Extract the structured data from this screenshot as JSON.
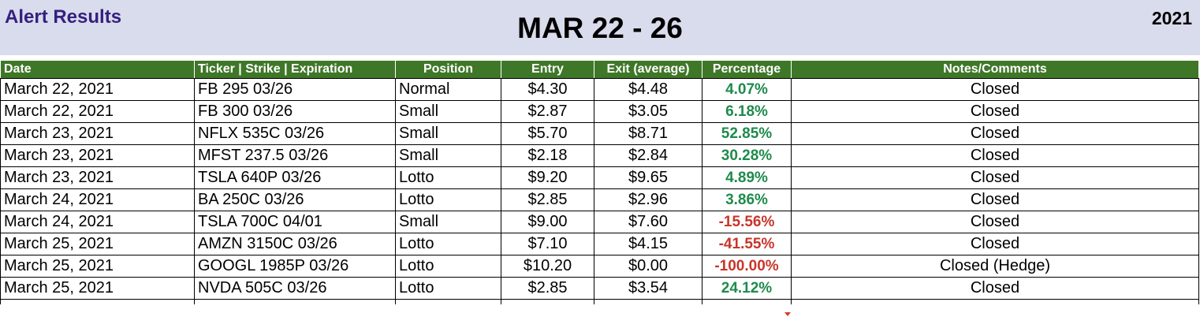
{
  "header": {
    "left_title": "Alert Results",
    "center_title": "MAR 22 - 26",
    "year": "2021"
  },
  "colors": {
    "banner_bg": "#d9dcec",
    "left_title": "#35207f",
    "header_bg": "#3f7728",
    "positive": "#1f8a4c",
    "negative": "#c8352b"
  },
  "table": {
    "columns": [
      "Date",
      "Ticker | Strike | Expiration",
      "Position",
      "Entry",
      "Exit (average)",
      "Percentage",
      "Notes/Comments"
    ],
    "rows": [
      [
        "March 22, 2021",
        "FB 295 03/26",
        "Normal",
        "$4.30",
        "$4.48",
        "4.07%",
        "Closed"
      ],
      [
        "March 22, 2021",
        "FB 300 03/26",
        "Small",
        "$2.87",
        "$3.05",
        "6.18%",
        "Closed"
      ],
      [
        "March 23, 2021",
        "NFLX 535C 03/26",
        "Small",
        "$5.70",
        "$8.71",
        "52.85%",
        "Closed"
      ],
      [
        "March 23, 2021",
        "MFST 237.5 03/26",
        "Small",
        "$2.18",
        "$2.84",
        "30.28%",
        "Closed"
      ],
      [
        "March 23, 2021",
        "TSLA 640P 03/26",
        "Lotto",
        "$9.20",
        "$9.65",
        "4.89%",
        "Closed"
      ],
      [
        "March 24, 2021",
        "BA 250C 03/26",
        "Lotto",
        "$2.85",
        "$2.96",
        "3.86%",
        "Closed"
      ],
      [
        "March 24, 2021",
        "TSLA 700C 04/01",
        "Small",
        "$9.00",
        "$7.60",
        "-15.56%",
        "Closed"
      ],
      [
        "March 25, 2021",
        "AMZN 3150C 03/26",
        "Lotto",
        "$7.10",
        "$4.15",
        "-41.55%",
        "Closed"
      ],
      [
        "March 25, 2021",
        "GOOGL 1985P 03/26",
        "Lotto",
        "$10.20",
        "$0.00",
        "-100.00%",
        "Closed (Hedge)"
      ],
      [
        "March 25, 2021",
        "NVDA 505C 03/26",
        "Lotto",
        "$2.85",
        "$3.54",
        "24.12%",
        "Closed"
      ]
    ]
  }
}
